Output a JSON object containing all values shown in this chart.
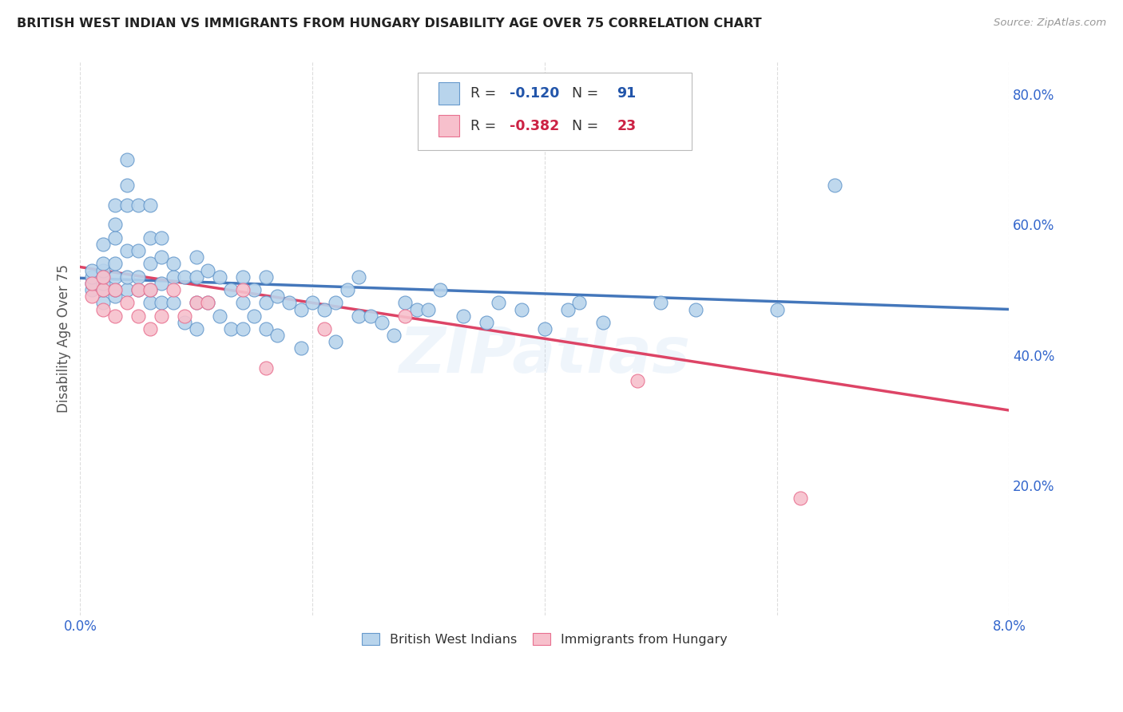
{
  "title": "BRITISH WEST INDIAN VS IMMIGRANTS FROM HUNGARY DISABILITY AGE OVER 75 CORRELATION CHART",
  "source": "Source: ZipAtlas.com",
  "ylabel": "Disability Age Over 75",
  "xmin": 0.0,
  "xmax": 0.08,
  "ymin": 0.0,
  "ymax": 0.85,
  "yticks": [
    0.2,
    0.4,
    0.6,
    0.8
  ],
  "ytick_labels": [
    "20.0%",
    "40.0%",
    "60.0%",
    "80.0%"
  ],
  "series1_label": "British West Indians",
  "series2_label": "Immigrants from Hungary",
  "R1": -0.12,
  "N1": 91,
  "R2": -0.382,
  "N2": 23,
  "color1_face": "#b8d4ec",
  "color1_edge": "#6699cc",
  "color2_face": "#f7c0cc",
  "color2_edge": "#e87090",
  "line1_color": "#4477bb",
  "line2_color": "#dd4466",
  "legend_R1_color": "#2255aa",
  "legend_R2_color": "#cc2244",
  "legend_N_color": "#2255aa",
  "background_color": "#ffffff",
  "watermark": "ZIPatlas",
  "scatter1_x": [
    0.001,
    0.001,
    0.001,
    0.001,
    0.002,
    0.002,
    0.002,
    0.002,
    0.002,
    0.002,
    0.002,
    0.003,
    0.003,
    0.003,
    0.003,
    0.003,
    0.003,
    0.003,
    0.004,
    0.004,
    0.004,
    0.004,
    0.004,
    0.004,
    0.005,
    0.005,
    0.005,
    0.005,
    0.006,
    0.006,
    0.006,
    0.006,
    0.006,
    0.007,
    0.007,
    0.007,
    0.007,
    0.008,
    0.008,
    0.008,
    0.009,
    0.009,
    0.01,
    0.01,
    0.01,
    0.01,
    0.011,
    0.011,
    0.012,
    0.012,
    0.013,
    0.013,
    0.014,
    0.014,
    0.014,
    0.015,
    0.015,
    0.016,
    0.016,
    0.016,
    0.017,
    0.017,
    0.018,
    0.019,
    0.019,
    0.02,
    0.021,
    0.022,
    0.022,
    0.023,
    0.024,
    0.024,
    0.025,
    0.026,
    0.027,
    0.028,
    0.029,
    0.03,
    0.031,
    0.033,
    0.035,
    0.036,
    0.038,
    0.04,
    0.042,
    0.043,
    0.045,
    0.05,
    0.053,
    0.06,
    0.065
  ],
  "scatter1_y": [
    0.5,
    0.51,
    0.52,
    0.53,
    0.48,
    0.5,
    0.51,
    0.52,
    0.53,
    0.54,
    0.57,
    0.49,
    0.5,
    0.52,
    0.54,
    0.58,
    0.6,
    0.63,
    0.5,
    0.52,
    0.56,
    0.63,
    0.66,
    0.7,
    0.5,
    0.52,
    0.56,
    0.63,
    0.48,
    0.5,
    0.54,
    0.58,
    0.63,
    0.48,
    0.51,
    0.55,
    0.58,
    0.48,
    0.52,
    0.54,
    0.45,
    0.52,
    0.44,
    0.48,
    0.52,
    0.55,
    0.48,
    0.53,
    0.46,
    0.52,
    0.44,
    0.5,
    0.44,
    0.48,
    0.52,
    0.46,
    0.5,
    0.44,
    0.48,
    0.52,
    0.43,
    0.49,
    0.48,
    0.41,
    0.47,
    0.48,
    0.47,
    0.42,
    0.48,
    0.5,
    0.46,
    0.52,
    0.46,
    0.45,
    0.43,
    0.48,
    0.47,
    0.47,
    0.5,
    0.46,
    0.45,
    0.48,
    0.47,
    0.44,
    0.47,
    0.48,
    0.45,
    0.48,
    0.47,
    0.47,
    0.66
  ],
  "scatter2_x": [
    0.001,
    0.001,
    0.002,
    0.002,
    0.002,
    0.003,
    0.003,
    0.004,
    0.005,
    0.005,
    0.006,
    0.006,
    0.007,
    0.008,
    0.009,
    0.01,
    0.011,
    0.014,
    0.016,
    0.021,
    0.028,
    0.048,
    0.062
  ],
  "scatter2_y": [
    0.49,
    0.51,
    0.47,
    0.5,
    0.52,
    0.46,
    0.5,
    0.48,
    0.46,
    0.5,
    0.44,
    0.5,
    0.46,
    0.5,
    0.46,
    0.48,
    0.48,
    0.5,
    0.38,
    0.44,
    0.46,
    0.36,
    0.18
  ],
  "line1_x": [
    0.0,
    0.08
  ],
  "line1_y": [
    0.518,
    0.47
  ],
  "line2_x": [
    0.0,
    0.08
  ],
  "line2_y": [
    0.535,
    0.315
  ]
}
